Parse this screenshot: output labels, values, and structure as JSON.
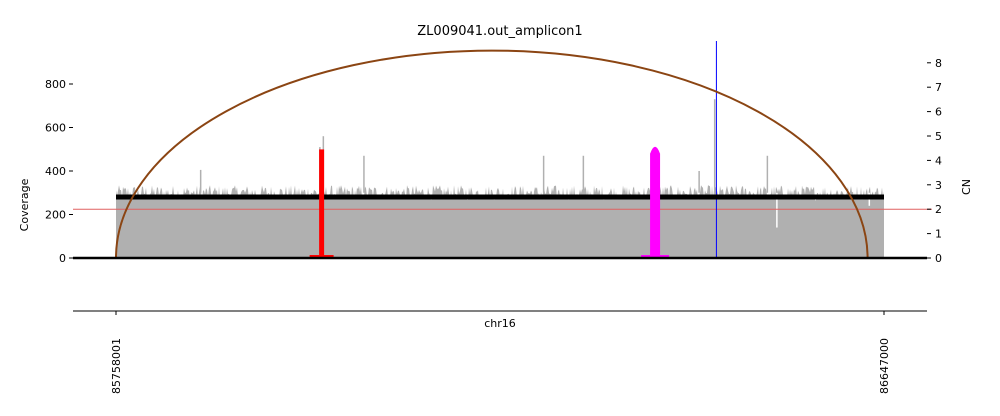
{
  "chart_data": {
    "type": "area",
    "title": "ZL009041.out_amplicon1",
    "xlabel": "chr16",
    "ylabel_left": "Coverage",
    "ylabel_right": "CN",
    "x_ticks": [
      "85758001",
      "86647000"
    ],
    "x_range": [
      85758001,
      86647000
    ],
    "y_left_ticks": [
      "0",
      "200",
      "400",
      "600",
      "800"
    ],
    "y_left_range": [
      0,
      1000
    ],
    "y_right_ticks": [
      "0",
      "1",
      "2",
      "3",
      "4",
      "5",
      "6",
      "7",
      "8"
    ],
    "y_right_range": [
      0,
      8
    ],
    "coverage": {
      "name": "",
      "color": "#b0b0b0",
      "baseline_value": 300,
      "range_start": 85758001,
      "range_end": 86647000,
      "peaks": [
        {
          "x": 85856000,
          "y": 405
        },
        {
          "x": 85998000,
          "y": 560
        },
        {
          "x": 85994000,
          "y": 510
        },
        {
          "x": 86045000,
          "y": 470
        },
        {
          "x": 86253000,
          "y": 470
        },
        {
          "x": 86299000,
          "y": 470
        },
        {
          "x": 86451000,
          "y": 730
        },
        {
          "x": 86512000,
          "y": 470
        },
        {
          "x": 86433000,
          "y": 400
        }
      ],
      "dips": [
        {
          "x": 86523000,
          "y": 140
        },
        {
          "x": 86630000,
          "y": 240
        }
      ]
    },
    "segments": [
      {
        "x_start": 85758001,
        "x_end": 86647000,
        "cn": 2.5,
        "color": "#000000"
      }
    ],
    "arc": {
      "x_start": 85758001,
      "x_end": 86628000,
      "peak_cn": 8.5,
      "color": "#8b4513"
    },
    "breakpoint_red": {
      "x": 85996000,
      "cn_top": 4.45,
      "color": "#ff0000"
    },
    "breakpoint_magenta": {
      "x": 86382000,
      "cn_top": 4.6,
      "color": "#ff00ff"
    },
    "blue_line": {
      "x": 86453000,
      "color": "#0000ff"
    },
    "red_hline": {
      "cn": 2.0,
      "color": "#e06060"
    },
    "grid": false
  }
}
